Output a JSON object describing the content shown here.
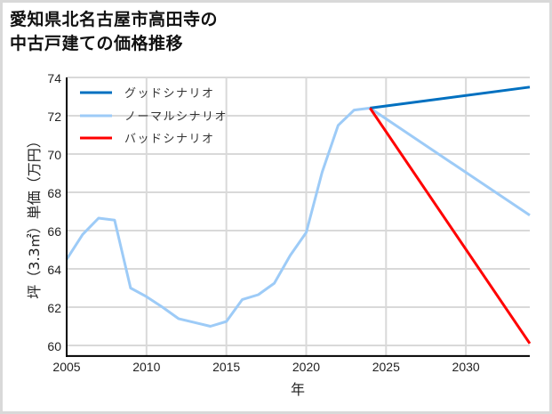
{
  "title": {
    "line1": "愛知県北名古屋市高田寺の",
    "line2": "中古戸建ての価格推移"
  },
  "axes": {
    "xlabel": "年",
    "ylabel": "坪（3.3㎡）単価（万円）",
    "xticks": [
      "2005",
      "2010",
      "2015",
      "2020",
      "2025",
      "2030"
    ],
    "yticks": [
      "60",
      "62",
      "64",
      "66",
      "68",
      "70",
      "72",
      "74"
    ]
  },
  "legend": {
    "good": "グッドシナリオ",
    "normal": "ノーマルシナリオ",
    "bad": "バッドシナリオ"
  },
  "colors": {
    "good": "#0070c0",
    "normal": "#9dcbf7",
    "bad": "#ff0000",
    "grid": "#d9d9d9",
    "frame": "#d9d9d9"
  },
  "chart_data": {
    "type": "line",
    "title": "愛知県北名古屋市高田寺の中古戸建ての価格推移",
    "xlabel": "年",
    "ylabel": "坪（3.3㎡）単価（万円）",
    "xlim": [
      2005,
      2034
    ],
    "ylim": [
      59.45,
      74
    ],
    "xticks": [
      2005,
      2010,
      2015,
      2020,
      2025,
      2030
    ],
    "yticks": [
      60,
      62,
      64,
      66,
      68,
      70,
      72,
      74
    ],
    "grid": true,
    "legend_position": "upper left",
    "series": [
      {
        "name": "ノーマルシナリオ",
        "color": "#9dcbf7",
        "x": [
          2005,
          2006,
          2007,
          2008,
          2009,
          2010,
          2011,
          2012,
          2013,
          2014,
          2015,
          2016,
          2017,
          2018,
          2019,
          2020,
          2021,
          2022,
          2023,
          2024,
          2034
        ],
        "values": [
          64.5,
          65.8,
          66.65,
          66.55,
          63.0,
          62.55,
          62.0,
          61.4,
          61.2,
          61.0,
          61.25,
          62.4,
          62.65,
          63.25,
          64.7,
          65.9,
          69.05,
          71.5,
          72.3,
          72.4,
          66.8
        ]
      },
      {
        "name": "グッドシナリオ",
        "color": "#0070c0",
        "x": [
          2024,
          2034
        ],
        "values": [
          72.4,
          73.5
        ]
      },
      {
        "name": "バッドシナリオ",
        "color": "#ff0000",
        "x": [
          2024,
          2034
        ],
        "values": [
          72.4,
          60.1
        ]
      }
    ]
  }
}
